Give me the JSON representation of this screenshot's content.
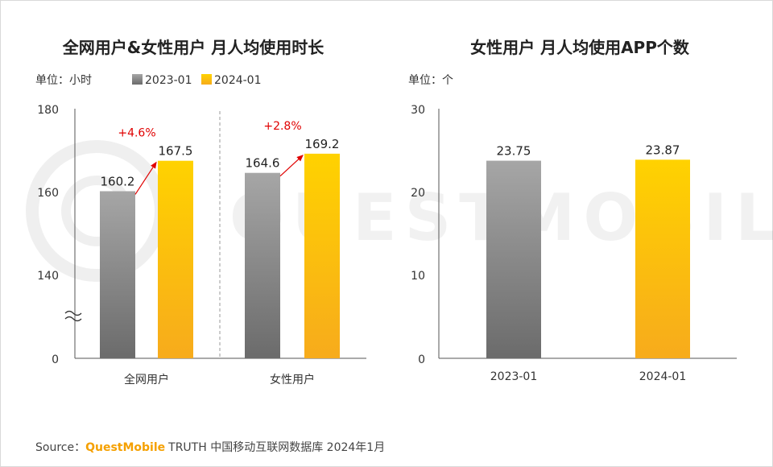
{
  "watermark": "QUESTMOBILE",
  "colors": {
    "series_2023": "#8a8a8a",
    "series_2024": "#fbbf14",
    "change_arrow": "#e00000",
    "brand": "#f5a000"
  },
  "chart_data": [
    {
      "type": "bar",
      "title": "全网用户&女性用户 月人均使用时长",
      "unit_label": "单位：小时",
      "categories": [
        "全网用户",
        "女性用户"
      ],
      "series": [
        {
          "name": "2023-01",
          "values": [
            160.2,
            164.6
          ]
        },
        {
          "name": "2024-01",
          "values": [
            167.5,
            169.2
          ]
        }
      ],
      "changes": [
        "+4.6%",
        "+2.8%"
      ],
      "y_ticks": [
        "180",
        "160",
        "140",
        "0"
      ],
      "y_axis_break": true,
      "ylim": [
        130,
        180
      ],
      "legend_position": "top"
    },
    {
      "type": "bar",
      "title": "女性用户 月人均使用APP个数",
      "unit_label": "单位：个",
      "categories": [
        "2023-01",
        "2024-01"
      ],
      "series": [
        {
          "values": [
            23.75,
            23.87
          ]
        }
      ],
      "y_ticks": [
        "30",
        "20",
        "10",
        "0"
      ],
      "ylim": [
        0,
        30
      ]
    }
  ],
  "footer": {
    "source_label": "Source：",
    "brand": "QuestMobile",
    "text": "TRUTH 中国移动互联网数据库 2024年1月"
  }
}
